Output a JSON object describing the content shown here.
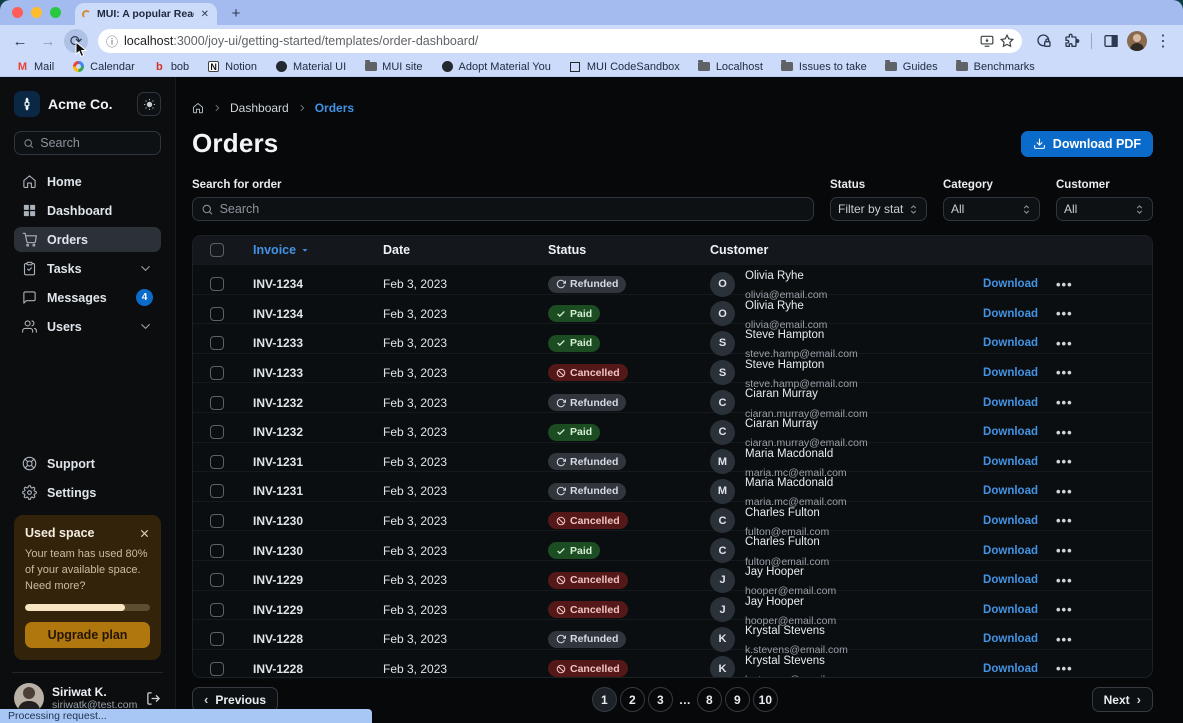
{
  "browser": {
    "tab_title": "MUI: A popular React UI fram",
    "url": {
      "host": "localhost",
      "path": ":3000/joy-ui/getting-started/templates/order-dashboard/"
    },
    "bookmarks": [
      {
        "label": "Mail",
        "icon": "gmail"
      },
      {
        "label": "Calendar",
        "icon": "google"
      },
      {
        "label": "bob",
        "icon": "letter-b"
      },
      {
        "label": "Notion",
        "icon": "notion"
      },
      {
        "label": "Material UI",
        "icon": "github"
      },
      {
        "label": "MUI site",
        "icon": "folder"
      },
      {
        "label": "Adopt Material You",
        "icon": "github"
      },
      {
        "label": "MUI CodeSandbox",
        "icon": "codesandbox"
      },
      {
        "label": "Localhost",
        "icon": "folder"
      },
      {
        "label": "Issues to take",
        "icon": "folder"
      },
      {
        "label": "Guides",
        "icon": "folder"
      },
      {
        "label": "Benchmarks",
        "icon": "folder"
      }
    ],
    "status_bar": "Processing request..."
  },
  "sidebar": {
    "brand": "Acme Co.",
    "search_placeholder": "Search",
    "nav": [
      {
        "label": "Home",
        "icon": "home",
        "active": false
      },
      {
        "label": "Dashboard",
        "icon": "dashboard",
        "active": false
      },
      {
        "label": "Orders",
        "icon": "cart",
        "active": true
      },
      {
        "label": "Tasks",
        "icon": "tasks",
        "chevron": true,
        "active": false
      },
      {
        "label": "Messages",
        "icon": "messages",
        "badge": "4",
        "active": false
      },
      {
        "label": "Users",
        "icon": "users",
        "chevron": true,
        "active": false
      }
    ],
    "secondary": [
      {
        "label": "Support",
        "icon": "support"
      },
      {
        "label": "Settings",
        "icon": "settings"
      }
    ],
    "usage_card": {
      "title": "Used space",
      "body": "Your team has used 80% of your available space. Need more?",
      "progress_percent": 80,
      "button_label": "Upgrade plan"
    },
    "user": {
      "name": "Siriwat K.",
      "email": "siriwatk@test.com"
    }
  },
  "main": {
    "breadcrumb": {
      "items": [
        "Dashboard",
        "Orders"
      ]
    },
    "title": "Orders",
    "download_pdf_label": "Download PDF",
    "filters": {
      "search_label": "Search for order",
      "search_placeholder": "Search",
      "selects": [
        {
          "label": "Status",
          "value": "Filter by status"
        },
        {
          "label": "Category",
          "value": "All"
        },
        {
          "label": "Customer",
          "value": "All"
        }
      ]
    },
    "table": {
      "columns": {
        "invoice": "Invoice",
        "date": "Date",
        "status": "Status",
        "customer": "Customer"
      },
      "row_action_label": "Download",
      "rows": [
        {
          "invoice": "INV-1234",
          "date": "Feb 3, 2023",
          "status": "Refunded",
          "status_type": "refunded",
          "initial": "O",
          "name": "Olivia Ryhe",
          "email": "olivia@email.com"
        },
        {
          "invoice": "INV-1234",
          "date": "Feb 3, 2023",
          "status": "Paid",
          "status_type": "paid",
          "initial": "O",
          "name": "Olivia Ryhe",
          "email": "olivia@email.com"
        },
        {
          "invoice": "INV-1233",
          "date": "Feb 3, 2023",
          "status": "Paid",
          "status_type": "paid",
          "initial": "S",
          "name": "Steve Hampton",
          "email": "steve.hamp@email.com"
        },
        {
          "invoice": "INV-1233",
          "date": "Feb 3, 2023",
          "status": "Cancelled",
          "status_type": "cancelled",
          "initial": "S",
          "name": "Steve Hampton",
          "email": "steve.hamp@email.com"
        },
        {
          "invoice": "INV-1232",
          "date": "Feb 3, 2023",
          "status": "Refunded",
          "status_type": "refunded",
          "initial": "C",
          "name": "Ciaran Murray",
          "email": "ciaran.murray@email.com"
        },
        {
          "invoice": "INV-1232",
          "date": "Feb 3, 2023",
          "status": "Paid",
          "status_type": "paid",
          "initial": "C",
          "name": "Ciaran Murray",
          "email": "ciaran.murray@email.com"
        },
        {
          "invoice": "INV-1231",
          "date": "Feb 3, 2023",
          "status": "Refunded",
          "status_type": "refunded",
          "initial": "M",
          "name": "Maria Macdonald",
          "email": "maria.mc@email.com"
        },
        {
          "invoice": "INV-1231",
          "date": "Feb 3, 2023",
          "status": "Refunded",
          "status_type": "refunded",
          "initial": "M",
          "name": "Maria Macdonald",
          "email": "maria.mc@email.com"
        },
        {
          "invoice": "INV-1230",
          "date": "Feb 3, 2023",
          "status": "Cancelled",
          "status_type": "cancelled",
          "initial": "C",
          "name": "Charles Fulton",
          "email": "fulton@email.com"
        },
        {
          "invoice": "INV-1230",
          "date": "Feb 3, 2023",
          "status": "Paid",
          "status_type": "paid",
          "initial": "C",
          "name": "Charles Fulton",
          "email": "fulton@email.com"
        },
        {
          "invoice": "INV-1229",
          "date": "Feb 3, 2023",
          "status": "Cancelled",
          "status_type": "cancelled",
          "initial": "J",
          "name": "Jay Hooper",
          "email": "hooper@email.com"
        },
        {
          "invoice": "INV-1229",
          "date": "Feb 3, 2023",
          "status": "Cancelled",
          "status_type": "cancelled",
          "initial": "J",
          "name": "Jay Hooper",
          "email": "hooper@email.com"
        },
        {
          "invoice": "INV-1228",
          "date": "Feb 3, 2023",
          "status": "Refunded",
          "status_type": "refunded",
          "initial": "K",
          "name": "Krystal Stevens",
          "email": "k.stevens@email.com"
        },
        {
          "invoice": "INV-1228",
          "date": "Feb 3, 2023",
          "status": "Cancelled",
          "status_type": "cancelled",
          "initial": "K",
          "name": "Krystal Stevens",
          "email": "k.stevens@email.com"
        }
      ]
    },
    "pagination": {
      "previous_label": "Previous",
      "next_label": "Next",
      "pages": [
        "1",
        "2",
        "3",
        "…",
        "8",
        "9",
        "10"
      ],
      "active_page": "1"
    }
  },
  "colors": {
    "accent_blue": "#0b6bcb",
    "link_blue": "#4393e5",
    "paid_chip_bg": "#1c4c22",
    "cancelled_chip_bg": "#551818",
    "refunded_chip_bg": "#30363c",
    "usage_card_bg": "#33230a",
    "upgrade_button_bg": "#b0770e",
    "badge_bg": "#0b6bcb"
  }
}
